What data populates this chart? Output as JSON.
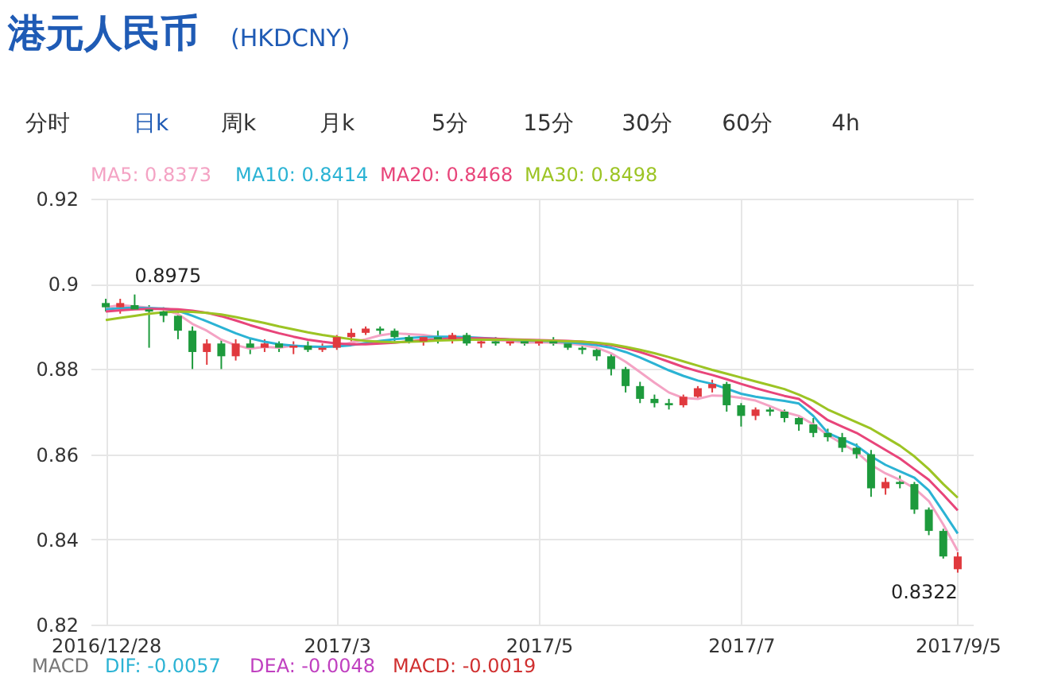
{
  "chart_data": {
    "type": "candlestick",
    "title": "港元人民币",
    "subtitle": "(HKDCNY)",
    "categories": [
      "2016/12/28",
      null,
      null,
      null,
      null,
      null,
      null,
      null,
      null,
      null,
      null,
      null,
      null,
      null,
      null,
      null,
      "2017/3",
      null,
      null,
      null,
      null,
      null,
      null,
      null,
      null,
      null,
      null,
      null,
      null,
      null,
      "2017/5",
      null,
      null,
      null,
      null,
      null,
      null,
      null,
      null,
      null,
      null,
      null,
      null,
      null,
      "2017/7",
      null,
      null,
      null,
      null,
      null,
      null,
      null,
      null,
      null,
      null,
      null,
      null,
      null,
      null,
      "2017/9/5"
    ],
    "ohlc": [
      [
        0.8955,
        0.8965,
        0.8935,
        0.8945
      ],
      [
        0.8945,
        0.8965,
        0.893,
        0.8955
      ],
      [
        0.895,
        0.8975,
        0.894,
        0.894
      ],
      [
        0.894,
        0.895,
        0.885,
        0.8935
      ],
      [
        0.8935,
        0.8945,
        0.891,
        0.8925
      ],
      [
        0.8925,
        0.8935,
        0.887,
        0.889
      ],
      [
        0.889,
        0.89,
        0.88,
        0.884
      ],
      [
        0.884,
        0.887,
        0.881,
        0.886
      ],
      [
        0.886,
        0.887,
        0.88,
        0.883
      ],
      [
        0.883,
        0.887,
        0.882,
        0.886
      ],
      [
        0.886,
        0.887,
        0.8835,
        0.885
      ],
      [
        0.885,
        0.887,
        0.884,
        0.886
      ],
      [
        0.886,
        0.8865,
        0.884,
        0.885
      ],
      [
        0.885,
        0.8865,
        0.8835,
        0.8855
      ],
      [
        0.8855,
        0.8865,
        0.884,
        0.8845
      ],
      [
        0.8845,
        0.886,
        0.884,
        0.885
      ],
      [
        0.885,
        0.888,
        0.8845,
        0.8875
      ],
      [
        0.8875,
        0.8895,
        0.8865,
        0.8885
      ],
      [
        0.8885,
        0.89,
        0.888,
        0.8895
      ],
      [
        0.8895,
        0.89,
        0.888,
        0.889
      ],
      [
        0.889,
        0.8895,
        0.8865,
        0.8875
      ],
      [
        0.8875,
        0.888,
        0.886,
        0.8865
      ],
      [
        0.8865,
        0.888,
        0.8855,
        0.8875
      ],
      [
        0.8875,
        0.889,
        0.886,
        0.887
      ],
      [
        0.887,
        0.8885,
        0.886,
        0.888
      ],
      [
        0.888,
        0.8885,
        0.8855,
        0.886
      ],
      [
        0.886,
        0.887,
        0.885,
        0.8865
      ],
      [
        0.8865,
        0.8875,
        0.8855,
        0.886
      ],
      [
        0.886,
        0.887,
        0.8855,
        0.8865
      ],
      [
        0.8865,
        0.887,
        0.8855,
        0.886
      ],
      [
        0.886,
        0.887,
        0.8855,
        0.8865
      ],
      [
        0.8865,
        0.8875,
        0.8855,
        0.886
      ],
      [
        0.886,
        0.8865,
        0.8845,
        0.885
      ],
      [
        0.885,
        0.886,
        0.8835,
        0.8845
      ],
      [
        0.8845,
        0.885,
        0.882,
        0.883
      ],
      [
        0.883,
        0.8835,
        0.8785,
        0.88
      ],
      [
        0.88,
        0.8805,
        0.8745,
        0.876
      ],
      [
        0.876,
        0.877,
        0.872,
        0.873
      ],
      [
        0.873,
        0.874,
        0.871,
        0.872
      ],
      [
        0.872,
        0.873,
        0.8705,
        0.8715
      ],
      [
        0.8715,
        0.874,
        0.871,
        0.8735
      ],
      [
        0.8735,
        0.876,
        0.873,
        0.8755
      ],
      [
        0.8755,
        0.8775,
        0.8745,
        0.8765
      ],
      [
        0.8765,
        0.877,
        0.87,
        0.8715
      ],
      [
        0.8715,
        0.872,
        0.8665,
        0.869
      ],
      [
        0.869,
        0.871,
        0.868,
        0.8705
      ],
      [
        0.8705,
        0.8715,
        0.869,
        0.87
      ],
      [
        0.87,
        0.8705,
        0.8675,
        0.8685
      ],
      [
        0.8685,
        0.869,
        0.8655,
        0.867
      ],
      [
        0.867,
        0.8685,
        0.864,
        0.865
      ],
      [
        0.865,
        0.866,
        0.863,
        0.864
      ],
      [
        0.864,
        0.865,
        0.8605,
        0.8615
      ],
      [
        0.8615,
        0.8625,
        0.859,
        0.86
      ],
      [
        0.86,
        0.861,
        0.85,
        0.852
      ],
      [
        0.852,
        0.8545,
        0.8505,
        0.8535
      ],
      [
        0.8535,
        0.855,
        0.852,
        0.853
      ],
      [
        0.853,
        0.8535,
        0.846,
        0.847
      ],
      [
        0.847,
        0.8475,
        0.841,
        0.842
      ],
      [
        0.842,
        0.8425,
        0.8355,
        0.836
      ],
      [
        0.833,
        0.837,
        0.8322,
        0.836
      ]
    ],
    "colors": [
      "#1d9a3c",
      "#e0393e",
      "#1d9a3c",
      "#1d9a3c",
      "#1d9a3c",
      "#1d9a3c",
      "#1d9a3c",
      "#e0393e",
      "#1d9a3c",
      "#e0393e",
      "#1d9a3c",
      "#e0393e",
      "#1d9a3c",
      "#e0393e",
      "#1d9a3c",
      "#e0393e",
      "#e0393e",
      "#e0393e",
      "#e0393e",
      "#1d9a3c",
      "#1d9a3c",
      "#1d9a3c",
      "#e0393e",
      "#1d9a3c",
      "#e0393e",
      "#1d9a3c",
      "#e0393e",
      "#1d9a3c",
      "#e0393e",
      "#1d9a3c",
      "#e0393e",
      "#1d9a3c",
      "#1d9a3c",
      "#1d9a3c",
      "#1d9a3c",
      "#1d9a3c",
      "#1d9a3c",
      "#1d9a3c",
      "#1d9a3c",
      "#1d9a3c",
      "#e0393e",
      "#e0393e",
      "#e0393e",
      "#1d9a3c",
      "#1d9a3c",
      "#e0393e",
      "#1d9a3c",
      "#1d9a3c",
      "#1d9a3c",
      "#1d9a3c",
      "#1d9a3c",
      "#1d9a3c",
      "#1d9a3c",
      "#1d9a3c",
      "#e0393e",
      "#1d9a3c",
      "#1d9a3c",
      "#1d9a3c",
      "#1d9a3c",
      "#e0393e"
    ],
    "series": [
      {
        "name": "MA5: 0.8373",
        "type": "line",
        "color": "#f4a3c4",
        "values": [
          0.8945,
          0.895,
          0.8947,
          0.8944,
          0.894,
          0.8929,
          0.8906,
          0.889,
          0.8869,
          0.8856,
          0.8848,
          0.8852,
          0.885,
          0.8855,
          0.8852,
          0.8852,
          0.8855,
          0.8862,
          0.887,
          0.8879,
          0.8884,
          0.8882,
          0.888,
          0.8875,
          0.8873,
          0.887,
          0.887,
          0.8868,
          0.8866,
          0.8862,
          0.8863,
          0.8862,
          0.886,
          0.8856,
          0.885,
          0.8837,
          0.8817,
          0.8793,
          0.8768,
          0.8745,
          0.8732,
          0.873,
          0.8738,
          0.8737,
          0.8732,
          0.8726,
          0.8713,
          0.8699,
          0.869,
          0.867,
          0.8645,
          0.8625,
          0.8605,
          0.8575,
          0.8555,
          0.854,
          0.852,
          0.849,
          0.8435,
          0.8373
        ]
      },
      {
        "name": "MA10: 0.8414",
        "type": "line",
        "color": "#2bb3d4",
        "values": [
          0.894,
          0.8943,
          0.8944,
          0.8943,
          0.8942,
          0.8937,
          0.8925,
          0.8912,
          0.8898,
          0.8884,
          0.8872,
          0.8864,
          0.8858,
          0.8855,
          0.8853,
          0.8852,
          0.8853,
          0.8856,
          0.8861,
          0.8866,
          0.887,
          0.8873,
          0.8875,
          0.8876,
          0.8876,
          0.8875,
          0.8873,
          0.8871,
          0.8869,
          0.8867,
          0.8866,
          0.8865,
          0.8863,
          0.886,
          0.8856,
          0.885,
          0.884,
          0.8827,
          0.8812,
          0.8797,
          0.8784,
          0.8773,
          0.8765,
          0.8754,
          0.8742,
          0.8735,
          0.873,
          0.8725,
          0.8719,
          0.869,
          0.865,
          0.8635,
          0.862,
          0.8595,
          0.8575,
          0.856,
          0.8545,
          0.8515,
          0.8465,
          0.8414
        ]
      },
      {
        "name": "MA20: 0.8468",
        "type": "line",
        "color": "#e8457a",
        "values": [
          0.8935,
          0.8938,
          0.894,
          0.8941,
          0.8941,
          0.894,
          0.8937,
          0.8932,
          0.8924,
          0.8914,
          0.8903,
          0.8893,
          0.8884,
          0.8876,
          0.8869,
          0.8864,
          0.886,
          0.8858,
          0.8858,
          0.886,
          0.8862,
          0.8865,
          0.8868,
          0.887,
          0.8872,
          0.8872,
          0.8872,
          0.8871,
          0.887,
          0.8869,
          0.8868,
          0.8867,
          0.8866,
          0.8864,
          0.8861,
          0.8856,
          0.8849,
          0.884,
          0.8829,
          0.8817,
          0.8805,
          0.8795,
          0.8786,
          0.8776,
          0.8765,
          0.8755,
          0.8746,
          0.8737,
          0.873,
          0.8705,
          0.868,
          0.8665,
          0.865,
          0.863,
          0.861,
          0.859,
          0.8565,
          0.854,
          0.8505,
          0.8468
        ]
      },
      {
        "name": "MA30: 0.8498",
        "type": "line",
        "color": "#9cc424",
        "values": [
          0.8915,
          0.892,
          0.8925,
          0.893,
          0.8933,
          0.8935,
          0.8934,
          0.8932,
          0.8928,
          0.8922,
          0.8915,
          0.8908,
          0.89,
          0.8893,
          0.8886,
          0.888,
          0.8875,
          0.887,
          0.8866,
          0.8864,
          0.8863,
          0.8864,
          0.8865,
          0.8867,
          0.8868,
          0.8869,
          0.8869,
          0.8869,
          0.8869,
          0.8868,
          0.8867,
          0.8866,
          0.8865,
          0.8864,
          0.8862,
          0.8858,
          0.8852,
          0.8845,
          0.8837,
          0.8828,
          0.8818,
          0.8808,
          0.8798,
          0.8789,
          0.878,
          0.8771,
          0.8762,
          0.8753,
          0.874,
          0.8725,
          0.8705,
          0.869,
          0.8675,
          0.866,
          0.864,
          0.862,
          0.8595,
          0.8565,
          0.853,
          0.8498
        ]
      }
    ],
    "ylim": [
      0.82,
      0.92
    ],
    "yticks": [
      0.82,
      0.84,
      0.86,
      0.88,
      0.9,
      0.92
    ],
    "grid": true,
    "legend": "top",
    "annotations": [
      "分时",
      "日k",
      "周k",
      "月k",
      "5分",
      "15分",
      "30分",
      "60分",
      "4h",
      "MACD",
      "DIF: -0.0057",
      "DEA: -0.0048",
      "MACD: -0.0019",
      "0.8975",
      "0.8322"
    ]
  }
}
